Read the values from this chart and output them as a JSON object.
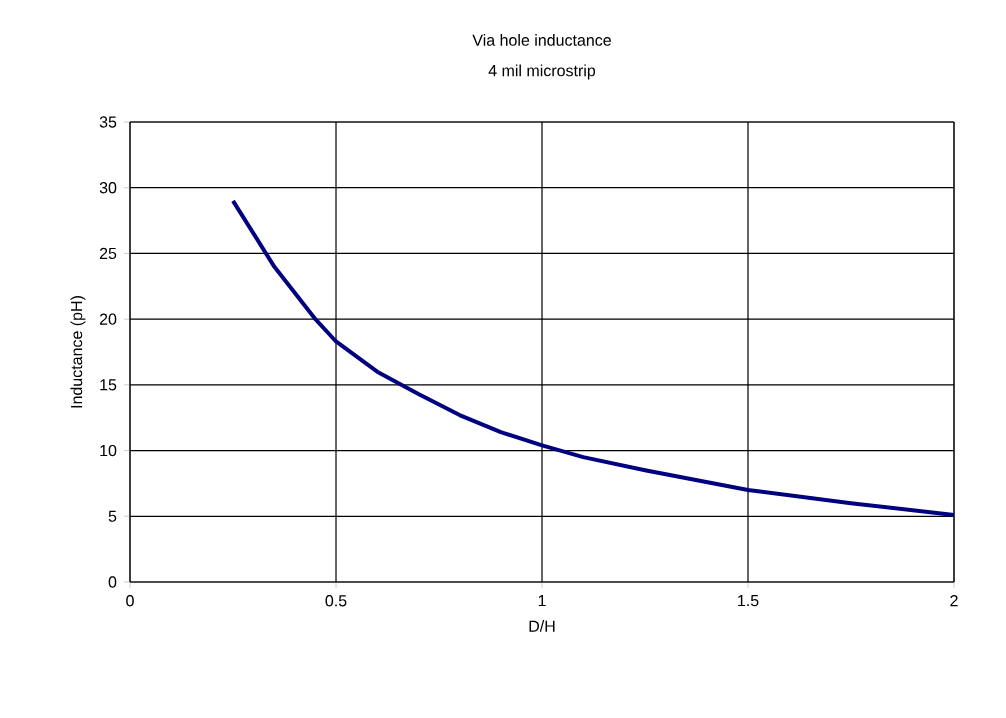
{
  "chart_data": {
    "type": "line",
    "title": "Via hole inductance",
    "subtitle": "4 mil microstrip",
    "xlabel": "D/H",
    "ylabel": "Inductance (pH)",
    "x": [
      0.25,
      0.3,
      0.35,
      0.4,
      0.45,
      0.5,
      0.6,
      0.7,
      0.75,
      0.8,
      0.9,
      1,
      1.1,
      1.25,
      1.5,
      1.75,
      2
    ],
    "series": [
      {
        "color": "#000080",
        "values": [
          29,
          26.5,
          24,
          22,
          20,
          18.3,
          16,
          14.3,
          13.5,
          12.7,
          11.4,
          10.4,
          9.5,
          8.5,
          7,
          6,
          5.1
        ]
      }
    ],
    "xlim": [
      0,
      2
    ],
    "ylim": [
      0,
      35
    ],
    "xticks": [
      0,
      0.5,
      1,
      1.5,
      2
    ],
    "yticks": [
      0,
      5,
      10,
      15,
      20,
      25,
      30,
      35
    ],
    "grid": true,
    "marker": "none",
    "line_style": "solid"
  }
}
